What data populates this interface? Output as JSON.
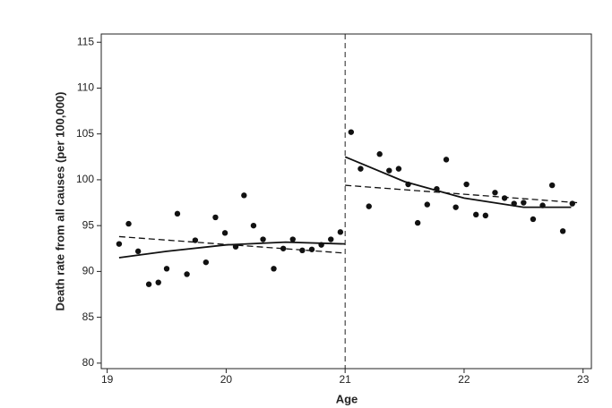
{
  "chart_data": {
    "type": "scatter",
    "xlabel": "Age",
    "ylabel": "Death rate from all causes (per 100,000)",
    "xlim": [
      18.95,
      23.07
    ],
    "ylim": [
      79.4,
      115.9
    ],
    "xticks": [
      19,
      20,
      21,
      22,
      23
    ],
    "yticks": [
      80,
      85,
      90,
      95,
      100,
      105,
      110,
      115
    ],
    "vline": 21,
    "series": [
      {
        "mode": "markers",
        "color": "#111111",
        "x": [
          19.1,
          19.18,
          19.26,
          19.35,
          19.43,
          19.5,
          19.59,
          19.67,
          19.74,
          19.83,
          19.91,
          19.99,
          20.08,
          20.15,
          20.23,
          20.31,
          20.4,
          20.48,
          20.56,
          20.64,
          20.72,
          20.8,
          20.88,
          20.96,
          21.05,
          21.13,
          21.2,
          21.29,
          21.37,
          21.45,
          21.53,
          21.61,
          21.69,
          21.77,
          21.85,
          21.93,
          22.02,
          22.1,
          22.18,
          22.26,
          22.34,
          22.42,
          22.5,
          22.58,
          22.66,
          22.74,
          22.83,
          22.91
        ],
        "values": [
          93.0,
          95.2,
          92.2,
          88.6,
          88.8,
          90.3,
          96.3,
          89.7,
          93.4,
          91.0,
          95.9,
          94.2,
          92.7,
          98.3,
          95.0,
          93.5,
          90.3,
          92.5,
          93.5,
          92.3,
          92.4,
          92.9,
          93.5,
          94.3,
          105.2,
          101.2,
          97.1,
          102.8,
          101.0,
          101.2,
          99.5,
          95.3,
          97.3,
          99.0,
          102.2,
          97.0,
          99.5,
          96.2,
          96.1,
          98.6,
          98.0,
          97.4,
          97.5,
          95.7,
          97.2,
          99.4,
          94.4,
          97.4
        ]
      },
      {
        "mode": "line",
        "dash": "solid",
        "color": "#111111",
        "x": [
          19.1,
          19.5,
          20,
          20.5,
          21
        ],
        "values": [
          91.5,
          92.2,
          92.9,
          93.2,
          93.0
        ]
      },
      {
        "mode": "line",
        "dash": "dashed",
        "color": "#111111",
        "x": [
          19.1,
          21
        ],
        "values": [
          93.8,
          92.0
        ]
      },
      {
        "mode": "line",
        "dash": "solid",
        "color": "#111111",
        "x": [
          21,
          21.5,
          22,
          22.5,
          22.9
        ],
        "values": [
          102.5,
          99.8,
          98.0,
          97.0,
          97.0
        ]
      },
      {
        "mode": "line",
        "dash": "dashed",
        "color": "#111111",
        "x": [
          21,
          22.95
        ],
        "values": [
          99.4,
          97.5
        ]
      }
    ]
  }
}
